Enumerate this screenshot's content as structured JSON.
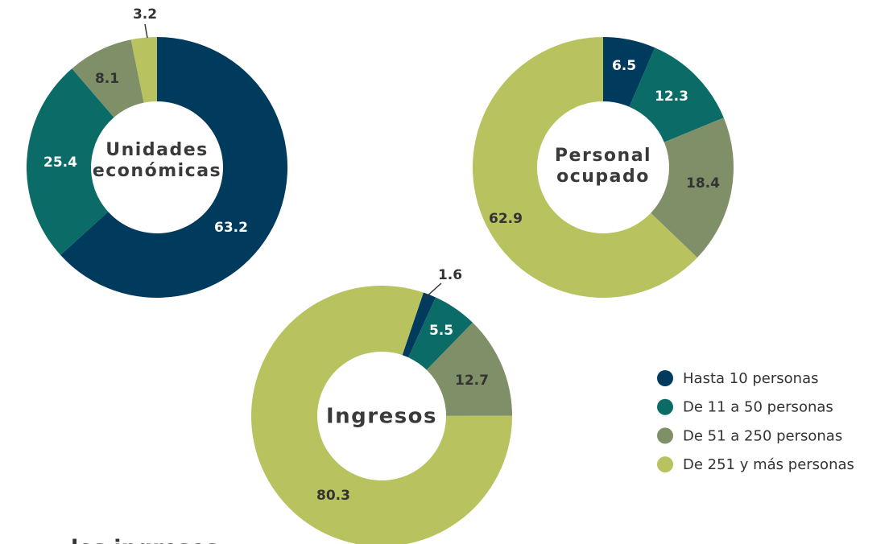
{
  "chart_data": [
    {
      "type": "donut",
      "title_lines": [
        "Unidades",
        "económicas"
      ],
      "values": [
        63.2,
        25.4,
        8.1,
        3.2
      ]
    },
    {
      "type": "donut",
      "title_lines": [
        "Personal",
        "ocupado"
      ],
      "values": [
        6.5,
        12.3,
        18.4,
        62.9
      ]
    },
    {
      "type": "donut",
      "title_lines": [
        "Ingresos"
      ],
      "values": [
        1.6,
        5.5,
        12.7,
        80.3
      ]
    }
  ],
  "legend": {
    "names": [
      "Hasta 10 personas",
      "De 11 a 50 personas",
      "De 51 a 250 personas",
      "De 251 y más personas"
    ],
    "colors": [
      "#003a5d",
      "#0b6b66",
      "#7f8f68",
      "#b8c25e"
    ]
  },
  "footer_text": "los ingresos"
}
